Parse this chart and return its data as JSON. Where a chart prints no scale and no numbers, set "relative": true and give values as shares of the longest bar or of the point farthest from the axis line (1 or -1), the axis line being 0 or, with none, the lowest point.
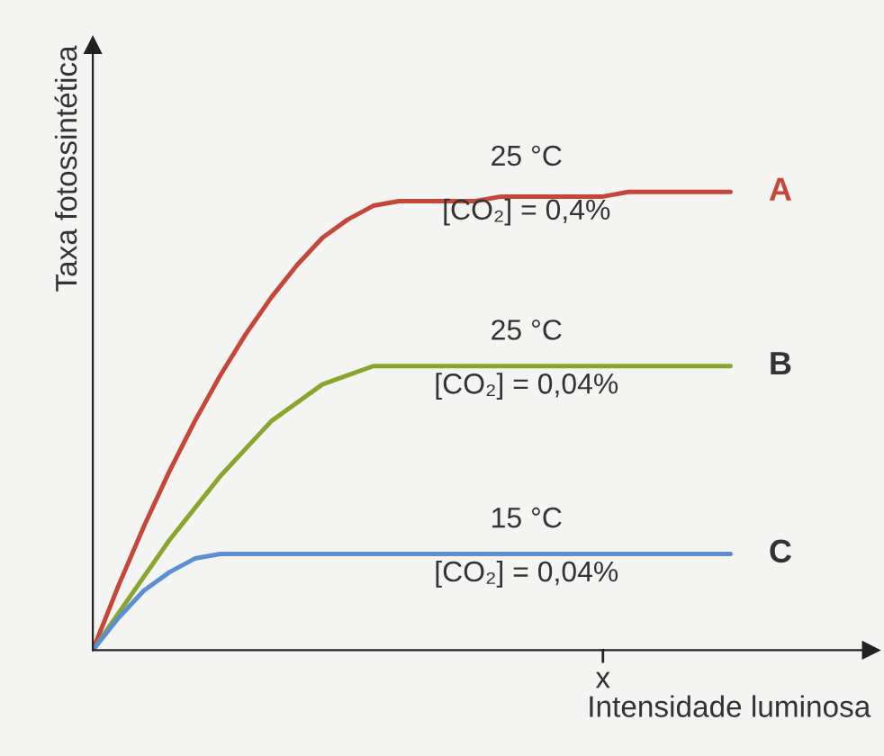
{
  "chart_data": {
    "type": "line",
    "relative": true,
    "xlabel": "Intensidade luminosa",
    "ylabel": "Taxa fotossintética",
    "categories": [
      null,
      null,
      null,
      null,
      null,
      null,
      null,
      null,
      null,
      null,
      null,
      null,
      null,
      null,
      null,
      null,
      null,
      null,
      null,
      null,
      null,
      null,
      null,
      null,
      null,
      null
    ],
    "series": [
      {
        "name": "A",
        "color": "#c4473a",
        "values": [
          0,
          0.14,
          0.27,
          0.39,
          0.5,
          0.6,
          0.69,
          0.77,
          0.84,
          0.9,
          0.94,
          0.97,
          0.98,
          0.98,
          0.98,
          0.98,
          0.99,
          0.99,
          0.99,
          0.99,
          0.99,
          1,
          1,
          1,
          1,
          1
        ]
      },
      {
        "name": "B",
        "color": "#8aa52c",
        "values": [
          0,
          0.08,
          0.16,
          0.24,
          0.31,
          0.38,
          0.44,
          0.5,
          0.54,
          0.58,
          0.6,
          0.62,
          0.62,
          0.62,
          0.62,
          0.62,
          0.62,
          0.62,
          0.62,
          0.62,
          0.62,
          0.62,
          0.62,
          0.62,
          0.62,
          0.62
        ]
      },
      {
        "name": "C",
        "color": "#5b8fd0",
        "values": [
          0,
          0.07,
          0.13,
          0.17,
          0.2,
          0.21,
          0.21,
          0.21,
          0.21,
          0.21,
          0.21,
          0.21,
          0.21,
          0.21,
          0.21,
          0.21,
          0.21,
          0.21,
          0.21,
          0.21,
          0.21,
          0.21,
          0.21,
          0.21,
          0.21,
          0.21
        ]
      }
    ],
    "annotations": [
      "25 °C\n[CO₂] = 0,4%",
      "25 °C\n[CO₂] = 0,04%",
      "15 °C\n[CO₂] = 0,04%",
      "x"
    ]
  }
}
